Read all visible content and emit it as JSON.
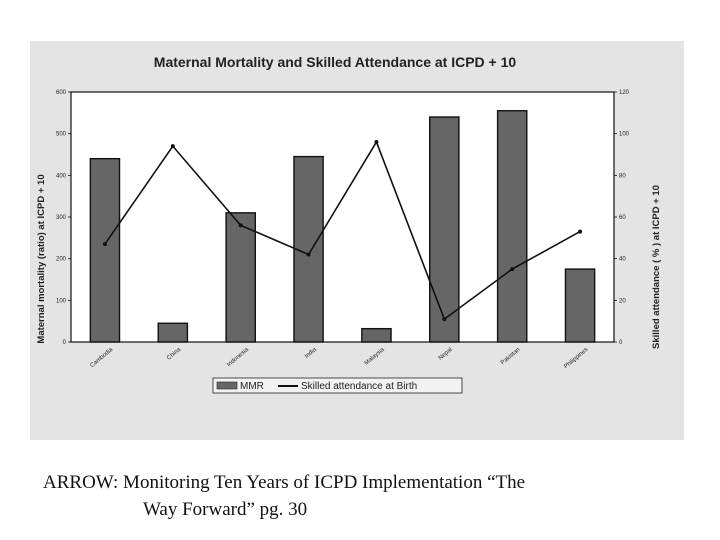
{
  "chart_data": {
    "type": "bar",
    "title": "Maternal Mortality and Skilled Attendance at ICPD + 10",
    "categories": [
      "Cambodia",
      "China",
      "Indonesia",
      "India",
      "Malaysia",
      "Nepal",
      "Pakistan",
      "Philippines"
    ],
    "series": [
      {
        "name": "MMR",
        "type": "bar",
        "axis": "left",
        "color": "#666666",
        "values": [
          440,
          45,
          310,
          445,
          32,
          540,
          555,
          175
        ]
      },
      {
        "name": "Skilled attendance at Birth",
        "type": "line",
        "axis": "right",
        "color": "#111111",
        "values": [
          47,
          94,
          56,
          42,
          96,
          11,
          35,
          53
        ]
      }
    ],
    "ylabel": "Maternal mortality (ratio) at ICPD + 10",
    "y2label": "Skilled attendance ( % ) at ICPD + 10",
    "ylim": [
      0,
      600
    ],
    "y2lim": [
      0,
      120
    ],
    "yticks": [
      "0",
      "100",
      "200",
      "300",
      "400",
      "500",
      "600"
    ],
    "y2ticks": [
      "0",
      "20",
      "40",
      "60",
      "80",
      "100",
      "120"
    ],
    "legend_position": "bottom",
    "grid": false
  },
  "caption": {
    "line1": "ARROW: Monitoring Ten Years of ICPD Implementation “The",
    "line2": "Way Forward” pg. 30"
  }
}
